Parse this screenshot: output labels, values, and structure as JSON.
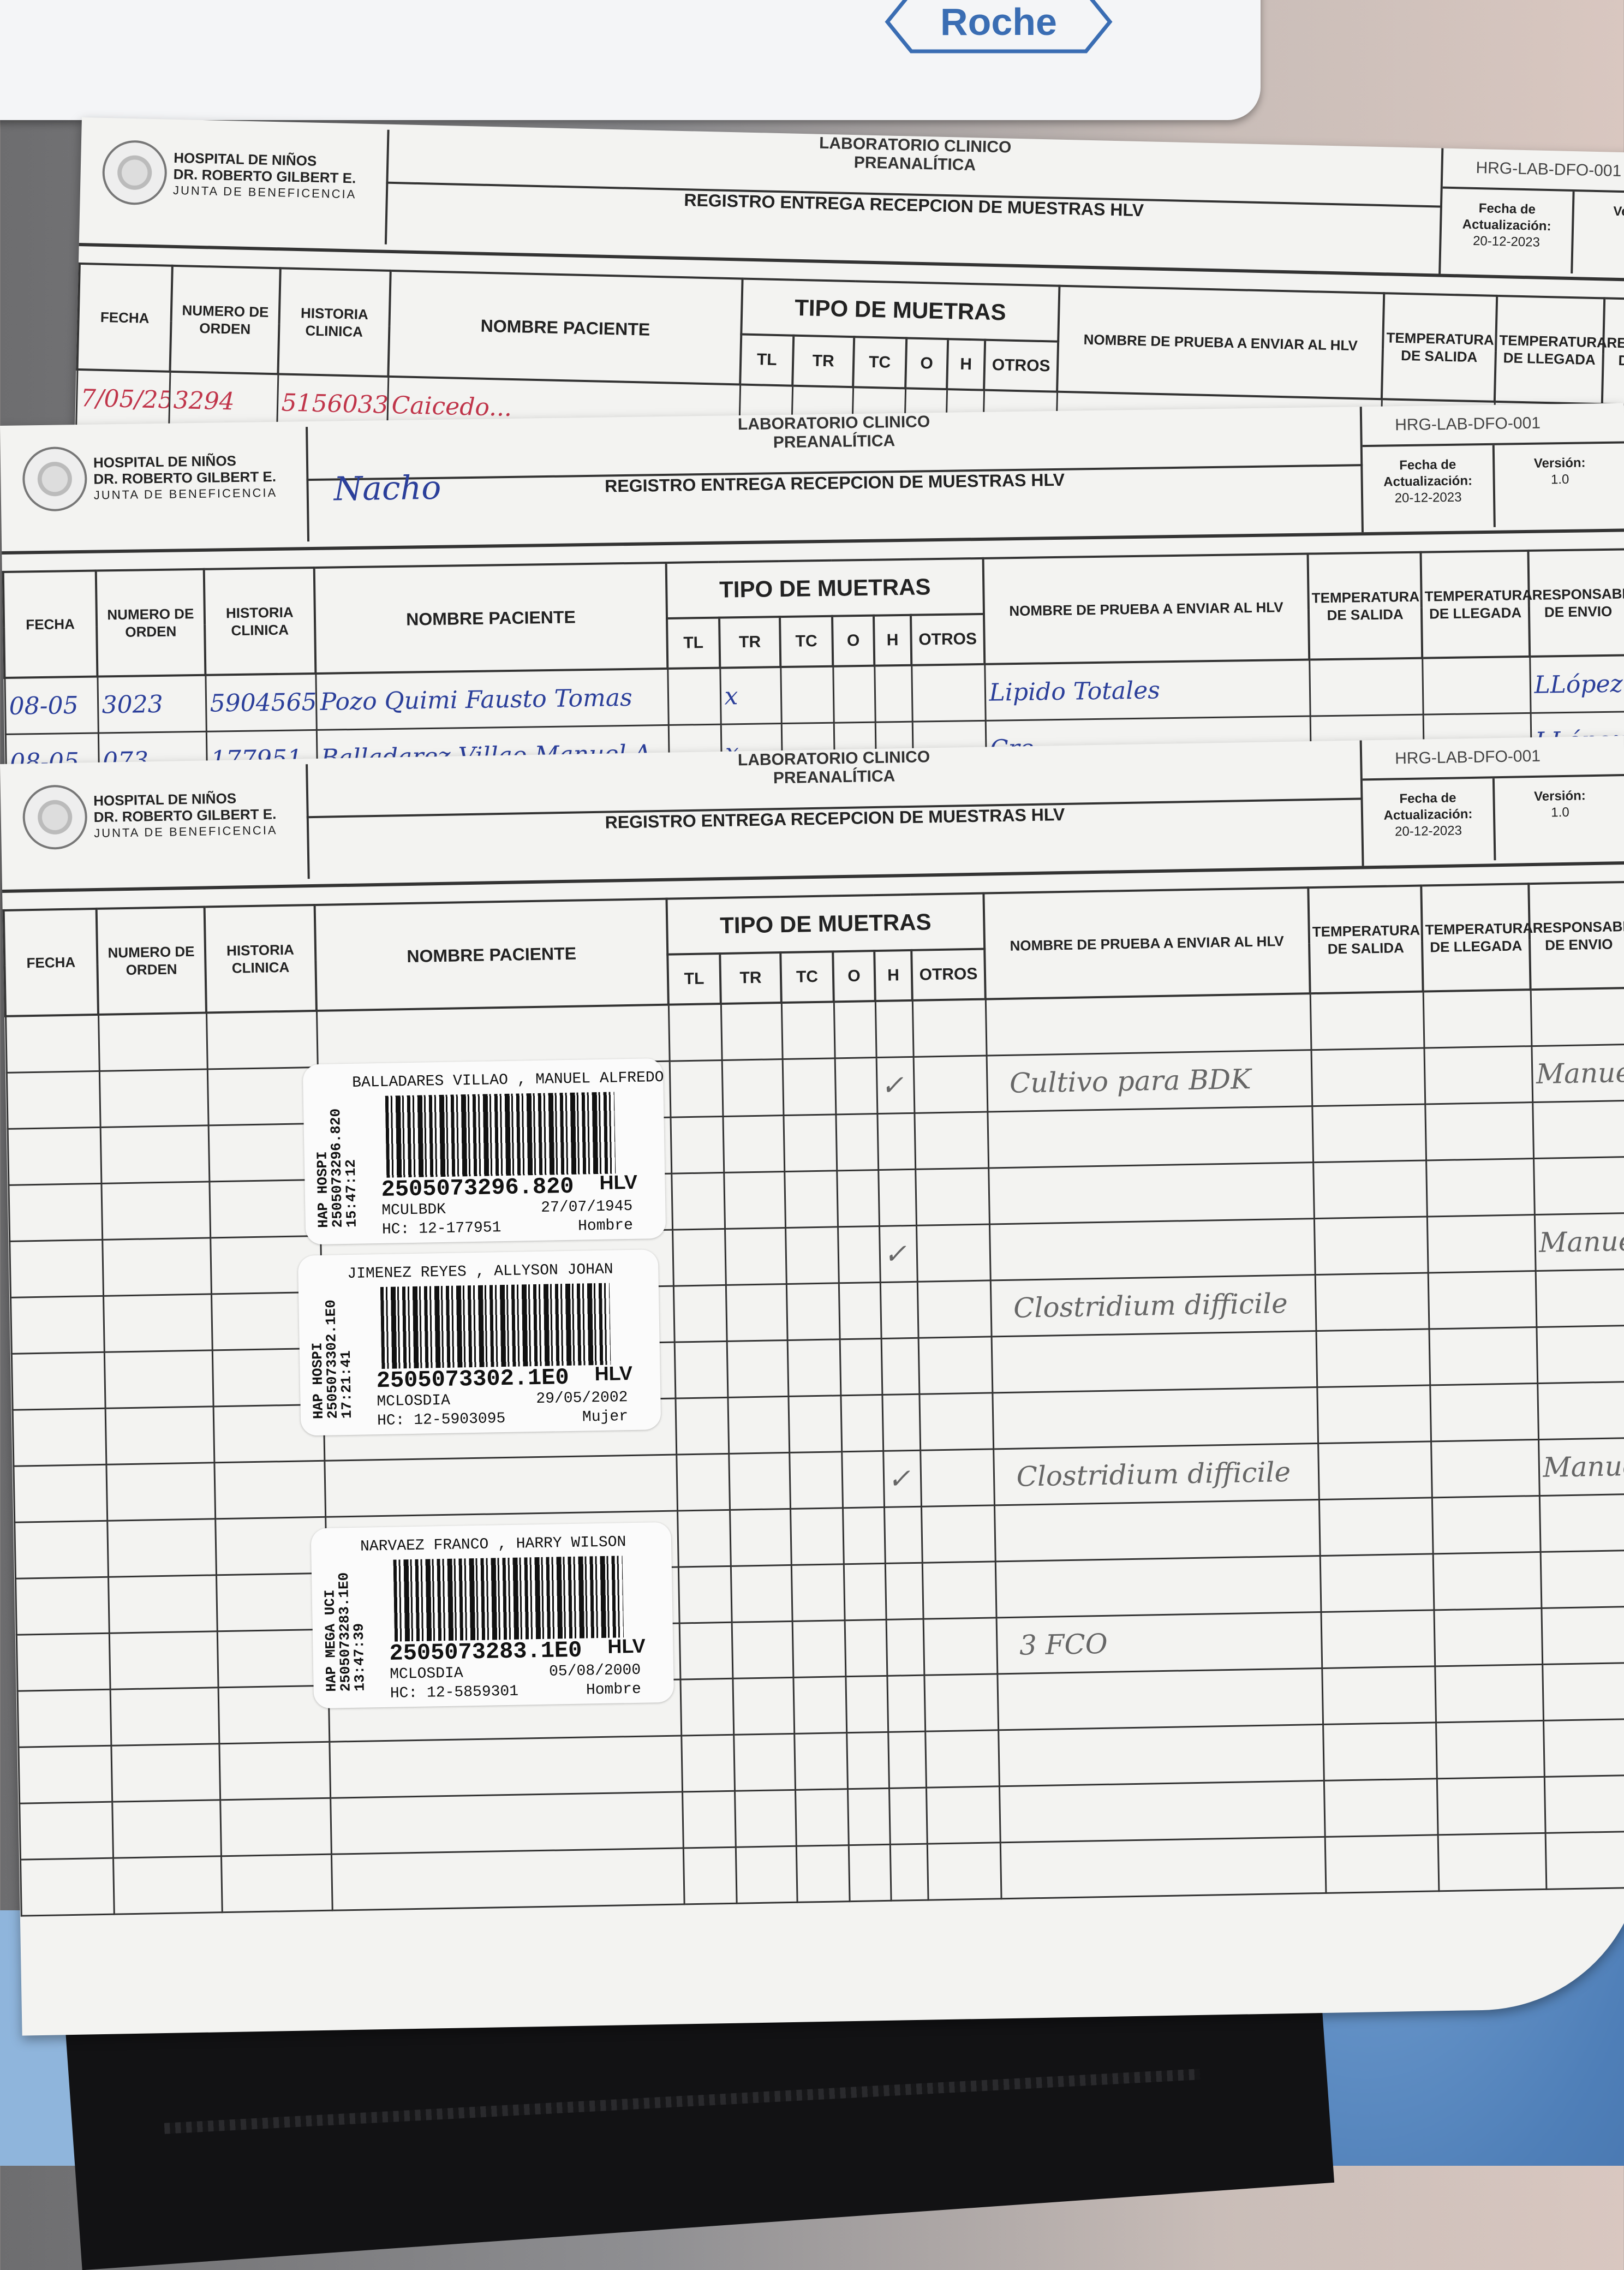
{
  "folder": {
    "brand": "Roche",
    "brand_color": "#3a6db3"
  },
  "form": {
    "hospital": [
      "HOSPITAL DE NIÑOS",
      "DR. ROBERTO GILBERT E.",
      "JUNTA DE BENEFICENCIA"
    ],
    "lab": "LABORATORIO CLINICO",
    "sub": "PREANALÍTICA",
    "title": "REGISTRO ENTREGA RECEPCION DE MUESTRAS HLV",
    "code": "HRG-LAB-DFO-001",
    "fecha_label": "Fecha de Actualización:",
    "fecha": "20-12-2023",
    "version_label": "Versión:",
    "version": "1.0",
    "columns": {
      "fecha": "FECHA",
      "orden": "NUMERO DE ORDEN",
      "historia": "HISTORIA CLINICA",
      "nombre": "NOMBRE PACIENTE",
      "tipo": "TIPO DE MUETRAS",
      "tipo_sub": [
        "TL",
        "TR",
        "TC",
        "O",
        "H",
        "OTROS"
      ],
      "prueba": "NOMBRE DE PRUEBA A ENVIAR AL HLV",
      "temp_salida": "TEMPERATURA DE SALIDA",
      "temp_llegada": "TEMPERATURA DE LLEGADA",
      "responsable": "RESPONSABLE DE ENVIO"
    }
  },
  "sheets": [
    {
      "style": "red",
      "note": "",
      "rows": [
        {
          "fecha": "7/05/25",
          "orden": "3294",
          "historia": "5156033",
          "nombre": "Caicedo..."
        }
      ]
    },
    {
      "style": "blue",
      "note": "Nacho",
      "rows": [
        {
          "fecha": "08-05",
          "orden": "3023",
          "historia": "5904565",
          "nombre": "Pozo Quimi Fausto Tomas",
          "tr": "x",
          "prueba": "Lipido Totales",
          "responsable": "LLópez"
        },
        {
          "fecha": "08-05",
          "orden": "073",
          "historia": "177951",
          "nombre": "Balladarez Villao Manuel A",
          "tr": "x",
          "prueba": "Cre...",
          "responsable": "LLópez"
        }
      ]
    },
    {
      "style": "pencil",
      "note": "",
      "rows": [
        {},
        {
          "h": "✓",
          "prueba": "Cultivo para BDK",
          "responsable": "Manuel"
        },
        {},
        {},
        {
          "h": "✓",
          "responsable": "Manuel"
        },
        {
          "prueba": "Clostridium difficile"
        },
        {},
        {},
        {
          "h": "✓",
          "prueba": "Clostridium difficile",
          "responsable": "Manuel"
        },
        {},
        {},
        {
          "prueba": "3 FCO"
        },
        {},
        {},
        {},
        {}
      ]
    }
  ],
  "labels": [
    {
      "name": "BALLADARES VILLAO , MANUEL ALFREDO",
      "side": [
        "HAP HOSPI",
        "2505073296.820",
        "15:47:12"
      ],
      "number": "2505073296.820",
      "dest": "HLV",
      "code": "MCULBDK",
      "dob": "27/07/1945",
      "hc": "HC: 12-177951",
      "sex": "Hombre"
    },
    {
      "name": "JIMENEZ REYES , ALLYSON JOHAN",
      "side": [
        "HAP HOSPI",
        "2505073302.1E0",
        "17:21:41"
      ],
      "number": "2505073302.1E0",
      "dest": "HLV",
      "code": "MCLOSDIA",
      "dob": "29/05/2002",
      "hc": "HC: 12-5903095",
      "sex": "Mujer"
    },
    {
      "name": "NARVAEZ FRANCO , HARRY WILSON",
      "side": [
        "HAP MEGA UCI",
        "2505073283.1E0",
        "13:47:39"
      ],
      "number": "2505073283.1E0",
      "dest": "HLV",
      "code": "MCLOSDIA",
      "dob": "05/08/2000",
      "hc": "HC: 12-5859301",
      "sex": "Hombre"
    }
  ]
}
